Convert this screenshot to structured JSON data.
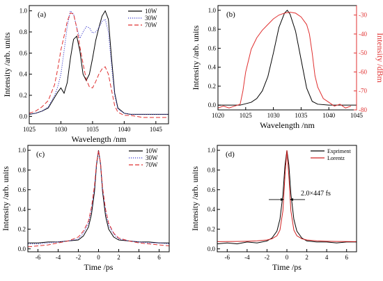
{
  "chart_data": [
    {
      "panel": "(a)",
      "type": "line",
      "xlabel": "Wavelength /nm",
      "ylabel": "Intensity /arb. units",
      "xlim": [
        1025,
        1047
      ],
      "ylim": [
        -0.07,
        1.05
      ],
      "xticks": [
        1025,
        1030,
        1035,
        1040,
        1045
      ],
      "yticks": [
        0.0,
        0.2,
        0.4,
        0.6,
        0.8,
        1.0
      ],
      "grid": false,
      "legend": "top-right",
      "series": [
        {
          "name": "10W",
          "color": "#000000",
          "dash": "solid",
          "x": [
            1025,
            1026,
            1027,
            1028,
            1029,
            1029.5,
            1030,
            1030.5,
            1031,
            1031.5,
            1032,
            1032.5,
            1033,
            1033.5,
            1034,
            1034.5,
            1035,
            1035.5,
            1036,
            1036.5,
            1037,
            1037.5,
            1038,
            1038.5,
            1039,
            1040,
            1041,
            1042,
            1043,
            1044,
            1045,
            1046,
            1047
          ],
          "y": [
            0.02,
            0.03,
            0.05,
            0.08,
            0.18,
            0.23,
            0.27,
            0.22,
            0.32,
            0.55,
            0.73,
            0.76,
            0.62,
            0.4,
            0.34,
            0.4,
            0.55,
            0.72,
            0.84,
            0.95,
            1.0,
            0.92,
            0.55,
            0.22,
            0.08,
            0.03,
            0.02,
            0.02,
            0.02,
            0.02,
            0.02,
            0.02,
            0.02
          ]
        },
        {
          "name": "30W",
          "color": "#3a3acc",
          "dash": "dot",
          "x": [
            1025,
            1026,
            1027,
            1028,
            1029,
            1029.5,
            1030,
            1030.5,
            1031,
            1031.5,
            1032,
            1032.5,
            1033,
            1033.5,
            1034,
            1034.5,
            1035,
            1035.5,
            1036,
            1036.5,
            1037,
            1037.5,
            1038,
            1038.5,
            1039,
            1040,
            1041,
            1042,
            1043,
            1044,
            1045,
            1046,
            1047
          ],
          "y": [
            0.02,
            0.03,
            0.05,
            0.09,
            0.2,
            0.28,
            0.4,
            0.62,
            0.85,
            1.0,
            0.97,
            0.84,
            0.74,
            0.8,
            0.85,
            0.84,
            0.79,
            0.8,
            0.84,
            0.9,
            0.92,
            0.8,
            0.48,
            0.2,
            0.07,
            0.03,
            0.02,
            0.02,
            0.02,
            0.02,
            0.02,
            0.02,
            0.02
          ]
        },
        {
          "name": "70W",
          "color": "#e03030",
          "dash": "dash",
          "x": [
            1025,
            1026,
            1027,
            1028,
            1029,
            1029.5,
            1030,
            1030.5,
            1031,
            1031.5,
            1032,
            1032.5,
            1033,
            1033.5,
            1034,
            1034.5,
            1035,
            1035.5,
            1036,
            1036.5,
            1037,
            1037.5,
            1038,
            1038.5,
            1039,
            1040,
            1041,
            1042,
            1043,
            1044,
            1045,
            1046,
            1047
          ],
          "y": [
            0.03,
            0.05,
            0.09,
            0.15,
            0.3,
            0.45,
            0.63,
            0.76,
            0.9,
            0.98,
            0.97,
            0.84,
            0.66,
            0.5,
            0.35,
            0.28,
            0.27,
            0.33,
            0.4,
            0.45,
            0.47,
            0.4,
            0.25,
            0.1,
            0.04,
            0.01,
            0.01,
            0.0,
            -0.01,
            -0.01,
            -0.01,
            -0.01,
            -0.01
          ]
        }
      ]
    },
    {
      "panel": "(b)",
      "type": "line",
      "xlabel": "Wavelength /nm",
      "ylabel": "Intensity /arb. units",
      "ylabel_right": "Intensity /dBm",
      "xlim": [
        1020,
        1045
      ],
      "ylim": [
        -0.05,
        1.05
      ],
      "y2lim": [
        -80,
        -25
      ],
      "xticks": [
        1020,
        1025,
        1030,
        1035,
        1040,
        1045
      ],
      "yticks": [
        0.0,
        0.2,
        0.4,
        0.6,
        0.8,
        1.0
      ],
      "y2ticks": [
        -30,
        -40,
        -50,
        -60,
        -70,
        -80
      ],
      "grid": false,
      "series": [
        {
          "name": "",
          "axis": "left",
          "color": "#000000",
          "x": [
            1020,
            1024,
            1026,
            1027,
            1028,
            1029,
            1030,
            1031,
            1032,
            1032.5,
            1033,
            1034,
            1035,
            1036,
            1037,
            1038,
            1040,
            1045
          ],
          "y": [
            0.0,
            0.0,
            0.03,
            0.07,
            0.15,
            0.3,
            0.55,
            0.82,
            0.97,
            1.0,
            0.96,
            0.78,
            0.48,
            0.18,
            0.04,
            0.01,
            0.0,
            0.0
          ]
        },
        {
          "name": "",
          "axis": "right",
          "color": "#e03030",
          "x": [
            1020,
            1021,
            1022,
            1023,
            1024,
            1024.5,
            1025,
            1026,
            1027,
            1028,
            1029,
            1030,
            1031,
            1032,
            1033,
            1034,
            1035,
            1036,
            1036.5,
            1037,
            1037.5,
            1038,
            1039,
            1040,
            1041,
            1042,
            1043,
            1044
          ],
          "y": [
            -79,
            -78,
            -79,
            -78,
            -77,
            -70,
            -60,
            -48,
            -42,
            -38,
            -35,
            -32,
            -30,
            -29,
            -28.5,
            -29,
            -31,
            -35,
            -40,
            -50,
            -62,
            -68,
            -74,
            -76,
            -78,
            -77,
            -79,
            -78
          ]
        }
      ]
    },
    {
      "panel": "(c)",
      "type": "line",
      "xlabel": "Time /ps",
      "ylabel": "Intensity /arb. units",
      "xlim": [
        -7,
        7
      ],
      "ylim": [
        -0.03,
        1.05
      ],
      "xticks": [
        -6,
        -4,
        -2,
        0,
        2,
        4,
        6
      ],
      "yticks": [
        0.0,
        0.2,
        0.4,
        0.6,
        0.8,
        1.0
      ],
      "grid": false,
      "legend": "top-right",
      "series": [
        {
          "name": "10W",
          "color": "#000000",
          "dash": "solid",
          "x": [
            -7,
            -6,
            -5,
            -4,
            -3,
            -2,
            -1.5,
            -1,
            -0.7,
            -0.4,
            -0.2,
            0,
            0.2,
            0.4,
            0.7,
            1,
            1.5,
            2,
            3,
            4,
            5,
            6,
            7
          ],
          "y": [
            0.06,
            0.06,
            0.07,
            0.07,
            0.08,
            0.09,
            0.13,
            0.22,
            0.35,
            0.58,
            0.85,
            1.0,
            0.86,
            0.58,
            0.33,
            0.2,
            0.12,
            0.09,
            0.08,
            0.07,
            0.07,
            0.06,
            0.06
          ]
        },
        {
          "name": "30W",
          "color": "#3a3acc",
          "dash": "dot",
          "x": [
            -7,
            -6,
            -5,
            -4,
            -3,
            -2,
            -1.5,
            -1,
            -0.7,
            -0.4,
            -0.2,
            0,
            0.2,
            0.4,
            0.7,
            1,
            1.5,
            2,
            3,
            4,
            5,
            6,
            7
          ],
          "y": [
            0.05,
            0.05,
            0.06,
            0.07,
            0.08,
            0.1,
            0.16,
            0.26,
            0.4,
            0.62,
            0.86,
            1.0,
            0.86,
            0.6,
            0.38,
            0.24,
            0.15,
            0.1,
            0.08,
            0.07,
            0.06,
            0.06,
            0.05
          ]
        },
        {
          "name": "70W",
          "color": "#e03030",
          "dash": "dash",
          "x": [
            -7,
            -6,
            -5,
            -4,
            -3,
            -2,
            -1.5,
            -1,
            -0.7,
            -0.4,
            -0.2,
            0,
            0.2,
            0.4,
            0.7,
            1,
            1.5,
            2,
            3,
            4,
            5,
            6,
            7
          ],
          "y": [
            0.02,
            0.03,
            0.04,
            0.06,
            0.08,
            0.12,
            0.18,
            0.28,
            0.42,
            0.64,
            0.87,
            1.0,
            0.87,
            0.62,
            0.4,
            0.26,
            0.16,
            0.11,
            0.08,
            0.06,
            0.05,
            0.04,
            0.03
          ]
        }
      ]
    },
    {
      "panel": "(d)",
      "type": "line",
      "xlabel": "Time /ps",
      "ylabel": "Intensity /arb. units",
      "xlim": [
        -7,
        7
      ],
      "ylim": [
        -0.03,
        1.05
      ],
      "xticks": [
        -6,
        -4,
        -2,
        0,
        2,
        4,
        6
      ],
      "yticks": [
        0.0,
        0.2,
        0.4,
        0.6,
        0.8,
        1.0
      ],
      "grid": false,
      "legend": "top-right",
      "annotation": {
        "text": "2.0×447 fs",
        "x": 0,
        "y": 0.5
      },
      "series": [
        {
          "name": "Expriment",
          "color": "#000000",
          "x": [
            -7,
            -6,
            -5,
            -4,
            -3,
            -2,
            -1.5,
            -1,
            -0.7,
            -0.4,
            -0.2,
            0,
            0.2,
            0.4,
            0.7,
            1,
            1.5,
            2,
            3,
            4,
            5,
            6,
            7
          ],
          "y": [
            0.05,
            0.06,
            0.05,
            0.07,
            0.06,
            0.08,
            0.11,
            0.18,
            0.3,
            0.55,
            0.84,
            1.0,
            0.85,
            0.56,
            0.3,
            0.18,
            0.11,
            0.08,
            0.07,
            0.07,
            0.06,
            0.07,
            0.07
          ]
        },
        {
          "name": "Lorentz",
          "color": "#d02020",
          "x": [
            -7,
            -6,
            -5,
            -4,
            -3,
            -2,
            -1.5,
            -1,
            -0.7,
            -0.4,
            -0.2,
            0,
            0.2,
            0.4,
            0.7,
            1,
            1.5,
            2,
            3,
            4,
            5,
            6,
            7
          ],
          "y": [
            0.073,
            0.074,
            0.075,
            0.077,
            0.081,
            0.09,
            0.102,
            0.133,
            0.19,
            0.387,
            0.732,
            1.0,
            0.732,
            0.387,
            0.19,
            0.133,
            0.102,
            0.09,
            0.081,
            0.077,
            0.075,
            0.074,
            0.073
          ]
        }
      ]
    }
  ]
}
